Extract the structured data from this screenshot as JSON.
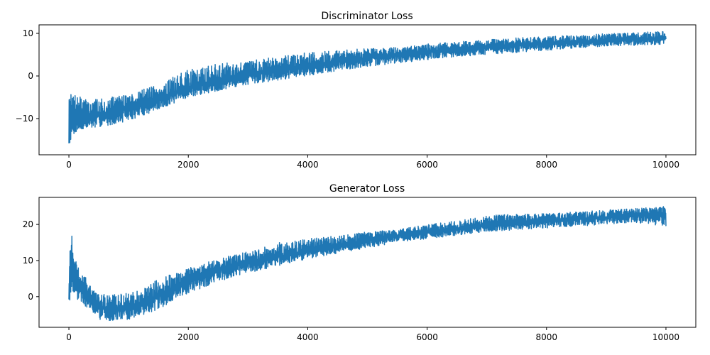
{
  "chart_data": [
    {
      "type": "line",
      "title": "Discriminator Loss",
      "xlabel": "",
      "ylabel": "",
      "xlim": [
        -500,
        10500
      ],
      "ylim": [
        -18.5,
        12
      ],
      "xticks": [
        0,
        2000,
        4000,
        6000,
        8000,
        10000
      ],
      "xtick_labels": [
        "0",
        "2000",
        "4000",
        "6000",
        "8000",
        "10000"
      ],
      "yticks": [
        -10,
        0,
        10
      ],
      "ytick_labels": [
        "−10",
        "0",
        "10"
      ],
      "grid": false,
      "legend": "none",
      "series": [
        {
          "color": "#1f77b4",
          "x": [
            0,
            20,
            50,
            100,
            200,
            300,
            500,
            700,
            1000,
            1500,
            2000,
            2500,
            3000,
            3500,
            4000,
            4500,
            5000,
            5500,
            6000,
            6500,
            7000,
            7500,
            8000,
            8500,
            9000,
            9500,
            10000
          ],
          "mean": [
            -12,
            -11.5,
            -11,
            -10.5,
            -10,
            -9.8,
            -9.3,
            -8.8,
            -7.8,
            -5.5,
            -3,
            -1.2,
            0.2,
            1.5,
            2.4,
            3.3,
            4.2,
            5,
            5.7,
            6.2,
            6.8,
            7.3,
            7.6,
            8,
            8.3,
            8.6,
            8.8
          ],
          "band_low": [
            -17,
            -15.5,
            -14.5,
            -13.5,
            -13,
            -12.5,
            -12,
            -11.5,
            -10.5,
            -8,
            -5,
            -3.5,
            -2,
            -1,
            0,
            1.2,
            2.2,
            3,
            3.8,
            4.5,
            5,
            5.5,
            6,
            6.5,
            7,
            7.2,
            7.4
          ],
          "band_high": [
            -5,
            -5,
            -3.5,
            -4.5,
            -5,
            -5.5,
            -5.5,
            -5,
            -4,
            -2,
            1.5,
            3,
            3.5,
            4.5,
            5.5,
            6,
            6.5,
            7,
            7.5,
            8,
            8.5,
            9,
            9.3,
            9.5,
            10,
            10.2,
            10.5
          ]
        }
      ]
    },
    {
      "type": "line",
      "title": "Generator Loss",
      "xlabel": "",
      "ylabel": "",
      "xlim": [
        -500,
        10500
      ],
      "ylim": [
        -8.5,
        27.5
      ],
      "xticks": [
        0,
        2000,
        4000,
        6000,
        8000,
        10000
      ],
      "xtick_labels": [
        "0",
        "2000",
        "4000",
        "6000",
        "8000",
        "10000"
      ],
      "yticks": [
        0,
        10,
        20
      ],
      "ytick_labels": [
        "0",
        "10",
        "20"
      ],
      "grid": false,
      "legend": "none",
      "series": [
        {
          "color": "#1f77b4",
          "x": [
            0,
            20,
            50,
            100,
            150,
            200,
            300,
            400,
            500,
            700,
            1000,
            1200,
            1500,
            2000,
            2500,
            3000,
            3500,
            4000,
            4500,
            5000,
            5500,
            6000,
            6500,
            7000,
            7500,
            8000,
            8500,
            9000,
            9500,
            10000
          ],
          "mean": [
            3,
            6,
            9,
            4,
            3,
            2,
            0,
            -1.5,
            -3,
            -3.5,
            -3,
            -2,
            0,
            4.5,
            7.5,
            9.5,
            11,
            12.5,
            14,
            15.5,
            16.8,
            18,
            18.8,
            19.8,
            20.5,
            21,
            21.5,
            22,
            22.5,
            23
          ],
          "band_low": [
            -2,
            -1,
            2,
            0,
            -1,
            -1.5,
            -3,
            -4.5,
            -6.5,
            -7,
            -6.5,
            -5.5,
            -3.5,
            1,
            4,
            6.5,
            8.5,
            10.5,
            12,
            13.5,
            15,
            16,
            17,
            18,
            18.5,
            19,
            19.5,
            20,
            20.5,
            19.5
          ],
          "band_high": [
            15,
            14,
            17,
            11,
            8,
            8,
            5,
            3.5,
            1.5,
            0.5,
            1,
            2,
            5,
            8,
            10.5,
            12.5,
            15,
            16,
            17,
            18,
            18.5,
            20,
            21,
            22.5,
            23,
            23,
            23.5,
            24,
            24.5,
            25
          ]
        }
      ]
    }
  ]
}
